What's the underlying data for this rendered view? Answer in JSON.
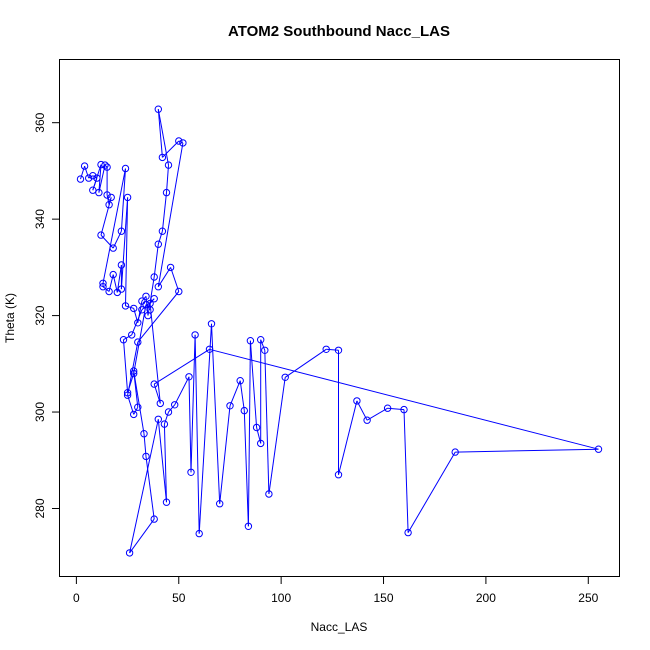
{
  "chart_data": {
    "type": "line",
    "title": "ATOM2 Southbound Nacc_LAS",
    "xlabel": "Nacc_LAS",
    "ylabel": "Theta (K)",
    "xlim": [
      -8,
      265
    ],
    "ylim": [
      266,
      373
    ],
    "x_ticks": [
      0,
      50,
      100,
      150,
      200,
      250
    ],
    "y_ticks": [
      280,
      300,
      320,
      340,
      360
    ],
    "series_style": {
      "color": "#0000ff",
      "marker": "open-circle",
      "line": true
    },
    "grid": false,
    "legend": "none",
    "series": [
      {
        "points": [
          [
            2,
            348.3
          ],
          [
            4,
            351
          ],
          [
            6,
            348.5
          ],
          [
            8,
            349
          ],
          [
            10,
            348.5
          ],
          [
            8,
            346
          ],
          [
            12,
            351.3
          ],
          [
            11,
            345.5
          ],
          [
            14,
            351.2
          ],
          [
            15,
            350.8
          ],
          [
            15,
            345
          ],
          [
            16,
            343
          ],
          [
            17,
            344.5
          ],
          [
            12,
            336.7
          ],
          [
            18,
            334
          ],
          [
            22,
            337.5
          ],
          [
            24,
            350.5
          ],
          [
            13,
            326.7
          ],
          [
            13,
            326
          ],
          [
            16,
            325
          ],
          [
            18,
            328.5
          ],
          [
            20,
            324.8
          ],
          [
            22,
            330.5
          ],
          [
            22,
            325.5
          ],
          [
            25,
            344.5
          ],
          [
            24,
            322
          ],
          [
            28,
            321.5
          ],
          [
            30,
            318.5
          ],
          [
            32,
            323
          ],
          [
            34,
            324
          ],
          [
            35,
            320
          ],
          [
            38,
            328
          ],
          [
            40,
            334.8
          ],
          [
            42,
            337.5
          ],
          [
            44,
            345.5
          ],
          [
            45,
            351.2
          ],
          [
            40,
            362.8
          ],
          [
            42,
            352.8
          ],
          [
            50,
            356.2
          ],
          [
            52,
            355.8
          ],
          [
            40,
            326
          ],
          [
            46,
            330
          ],
          [
            50,
            325
          ],
          [
            30,
            314.5
          ],
          [
            25,
            303.5
          ],
          [
            28,
            299.5
          ],
          [
            30,
            301
          ],
          [
            28,
            308.5
          ],
          [
            33,
            295.5
          ],
          [
            34,
            290.8
          ],
          [
            38,
            277.8
          ],
          [
            26,
            270.8
          ],
          [
            40,
            298.5
          ],
          [
            44,
            281.3
          ],
          [
            43,
            297.5
          ],
          [
            45,
            300
          ],
          [
            48,
            301.5
          ],
          [
            55,
            307.3
          ],
          [
            56,
            287.5
          ],
          [
            58,
            316
          ],
          [
            60,
            274.8
          ],
          [
            66,
            318.3
          ],
          [
            70,
            281
          ],
          [
            75,
            301.3
          ],
          [
            80,
            306.5
          ],
          [
            82,
            300.3
          ],
          [
            84,
            276.3
          ],
          [
            85,
            314.8
          ],
          [
            88,
            296.8
          ],
          [
            90,
            293.5
          ],
          [
            90,
            315
          ],
          [
            92,
            312.8
          ],
          [
            94,
            283
          ],
          [
            102,
            307.2
          ],
          [
            122,
            313
          ],
          [
            128,
            312.8
          ],
          [
            128,
            287
          ],
          [
            137,
            302.3
          ],
          [
            142,
            298.3
          ],
          [
            152,
            300.8
          ],
          [
            160,
            300.5
          ],
          [
            162,
            275
          ],
          [
            185,
            291.7
          ],
          [
            255,
            292.3
          ],
          [
            65,
            313
          ],
          [
            38,
            305.8
          ],
          [
            41,
            301.8
          ],
          [
            36,
            322.5
          ],
          [
            38,
            323.5
          ],
          [
            32,
            321.2
          ],
          [
            27,
            316
          ],
          [
            23,
            315
          ],
          [
            25,
            304
          ],
          [
            28,
            308
          ],
          [
            34,
            322.3
          ],
          [
            36,
            321.2
          ]
        ]
      }
    ]
  }
}
